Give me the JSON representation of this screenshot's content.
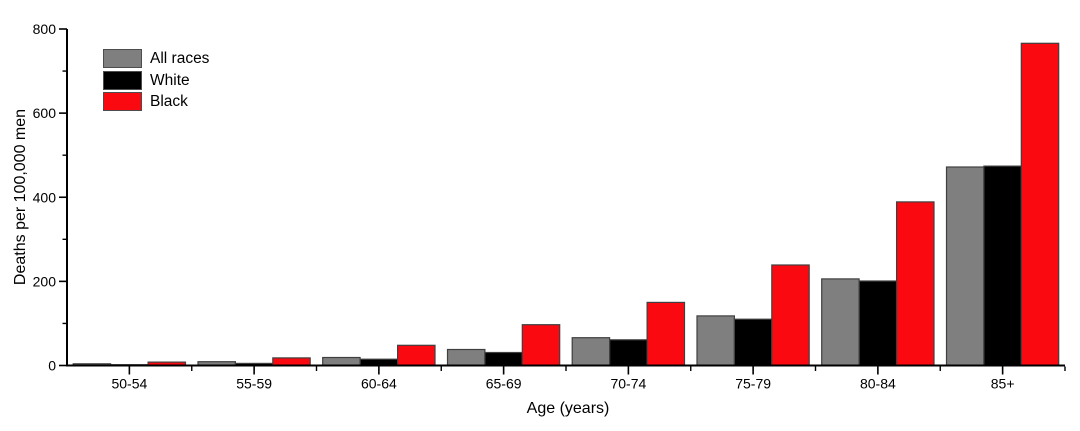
{
  "chart_data": {
    "type": "bar",
    "title": "",
    "xlabel": "Age (years)",
    "ylabel": "Deaths per 100,000 men",
    "categories": [
      "50-54",
      "55-59",
      "60-64",
      "65-69",
      "70-74",
      "75-79",
      "80-84",
      "85+"
    ],
    "series": [
      {
        "name": "All races",
        "color": "#7f7f7f",
        "values": [
          4,
          9,
          19,
          38,
          66,
          118,
          206,
          472
        ]
      },
      {
        "name": "White",
        "color": "#000000",
        "values": [
          2,
          5,
          15,
          31,
          61,
          110,
          201,
          474
        ]
      },
      {
        "name": "Black",
        "color": "#fa0a10",
        "values": [
          8,
          18,
          48,
          97,
          150,
          239,
          389,
          766
        ]
      }
    ],
    "ylim": [
      0,
      800
    ],
    "y_major_ticks": [
      0,
      200,
      400,
      600,
      800
    ],
    "y_minor_step": 100,
    "grid": false,
    "legend_position": "top-left",
    "colors": {
      "axis": "#000000",
      "bar_border": "#404040",
      "text": "#000000",
      "background": "#ffffff"
    }
  }
}
